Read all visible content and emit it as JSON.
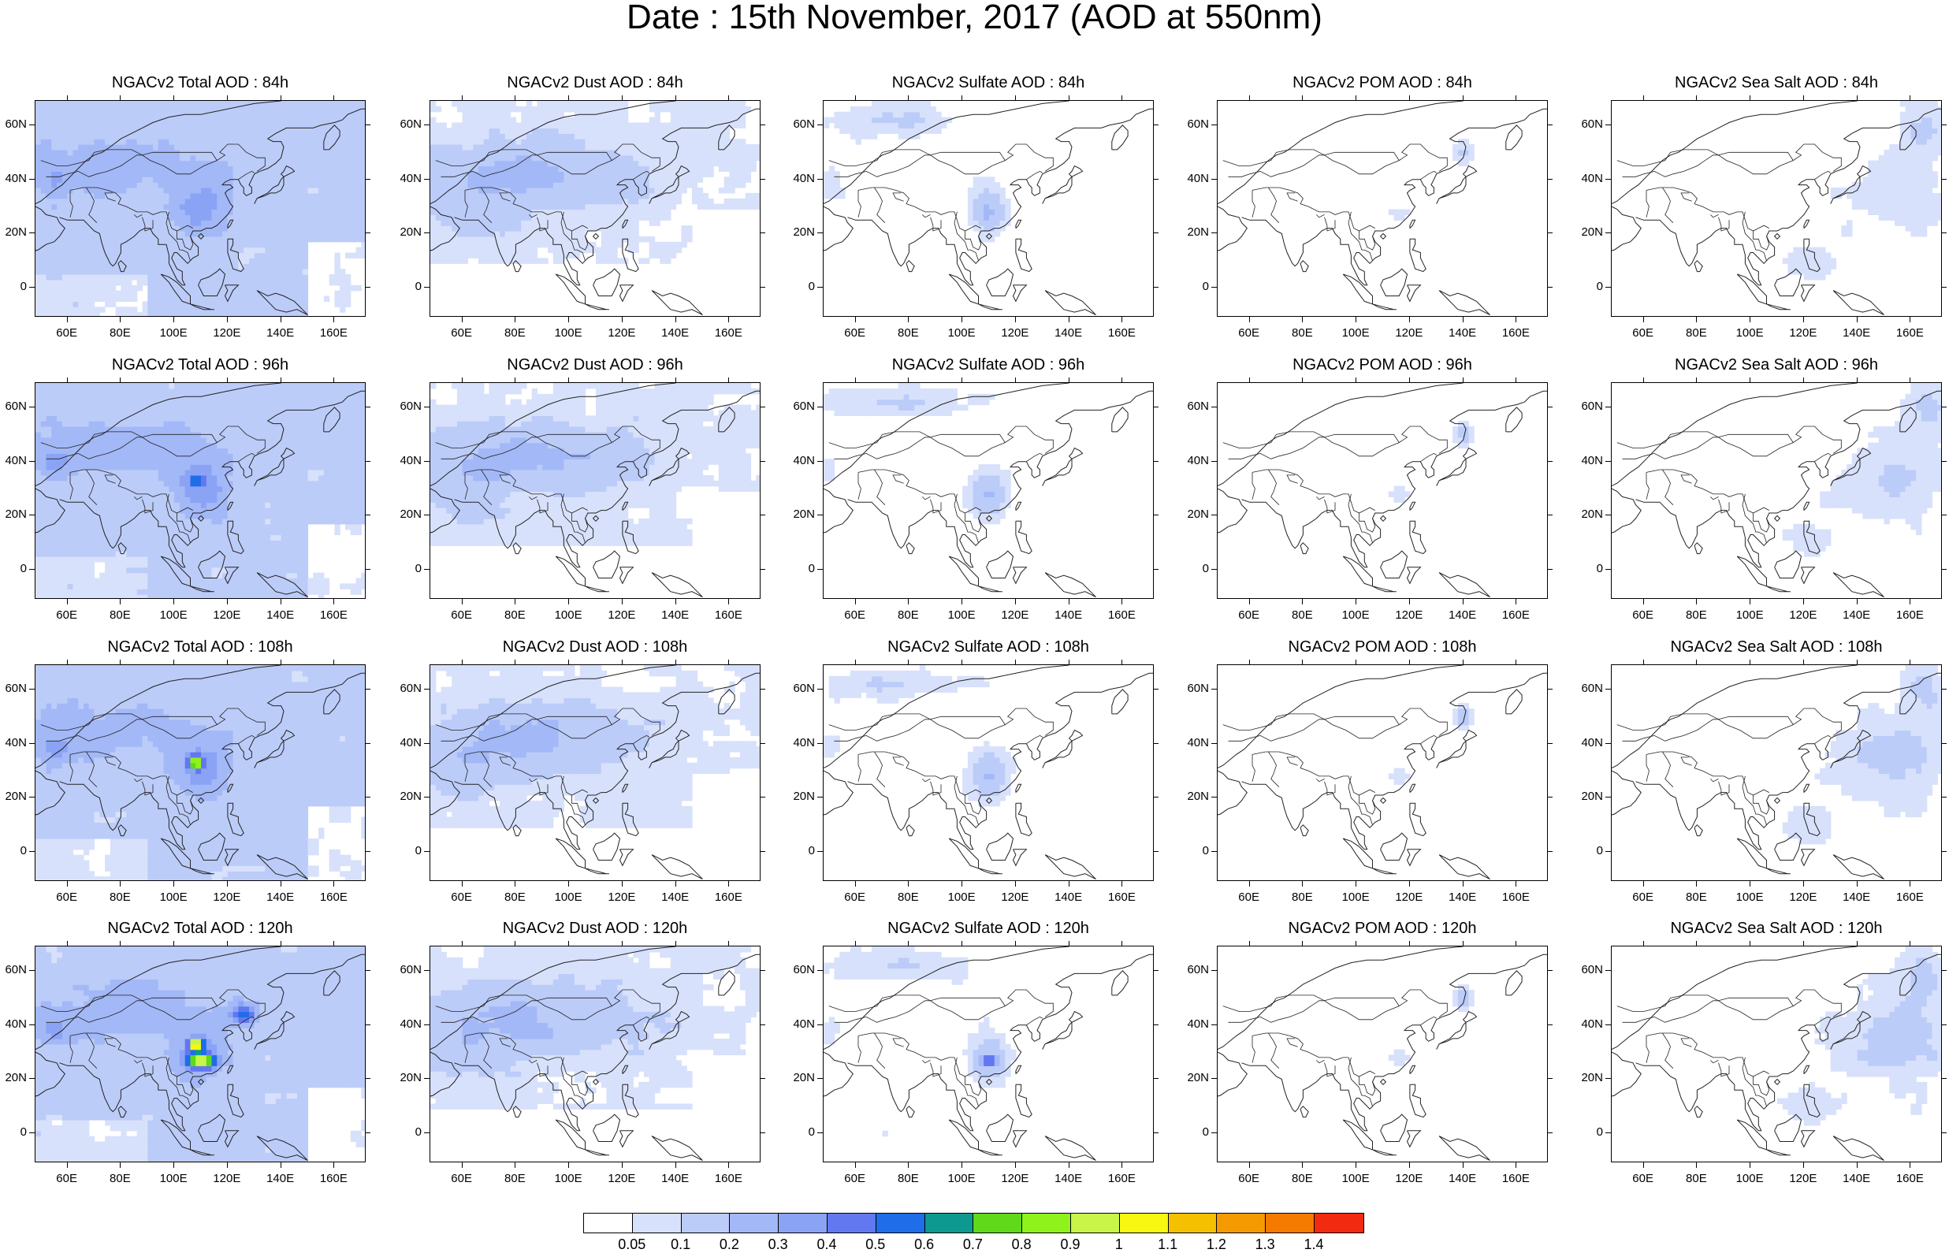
{
  "title": "Date : 15th November, 2017 (AOD at 550nm)",
  "lat_labels": [
    "60N",
    "40N",
    "20N",
    "0"
  ],
  "lon_labels": [
    "60E",
    "80E",
    "100E",
    "120E",
    "140E",
    "160E"
  ],
  "rows": [
    {
      "hour": "84h",
      "titles": [
        "NGACv2 Total AOD : 84h",
        "NGACv2 Dust AOD : 84h",
        "NGACv2 Sulfate AOD : 84h",
        "NGACv2 POM AOD : 84h",
        "NGACv2 Sea Salt AOD : 84h"
      ]
    },
    {
      "hour": "96h",
      "titles": [
        "NGACv2 Total AOD : 96h",
        "NGACv2 Dust AOD : 96h",
        "NGACv2 Sulfate AOD : 96h",
        "NGACv2 POM AOD : 96h",
        "NGACv2 Sea Salt AOD : 96h"
      ]
    },
    {
      "hour": "108h",
      "titles": [
        "NGACv2 Total AOD : 108h",
        "NGACv2 Dust AOD : 108h",
        "NGACv2 Sulfate AOD : 108h",
        "NGACv2 POM AOD : 108h",
        "NGACv2 Sea Salt AOD : 108h"
      ]
    },
    {
      "hour": "120h",
      "titles": [
        "NGACv2 Total AOD : 120h",
        "NGACv2 Dust AOD : 120h",
        "NGACv2 Sulfate AOD : 120h",
        "NGACv2 POM AOD : 120h",
        "NGACv2 Sea Salt  AOD : 120h"
      ]
    }
  ],
  "colorbar": {
    "labels": [
      "0.05",
      "0.1",
      "0.2",
      "0.3",
      "0.4",
      "0.5",
      "0.6",
      "0.7",
      "0.8",
      "0.9",
      "1",
      "1.1",
      "1.2",
      "1.3",
      "1.4"
    ],
    "colors": [
      "#ffffff",
      "#d8e1fb",
      "#bcccf9",
      "#a3b8f7",
      "#8ba3f5",
      "#6278f0",
      "#1f6de8",
      "#0e9990",
      "#5fd91a",
      "#8ff21a",
      "#c8f548",
      "#f7f712",
      "#f5c000",
      "#f59a00",
      "#f57a00",
      "#f22a10"
    ]
  }
}
